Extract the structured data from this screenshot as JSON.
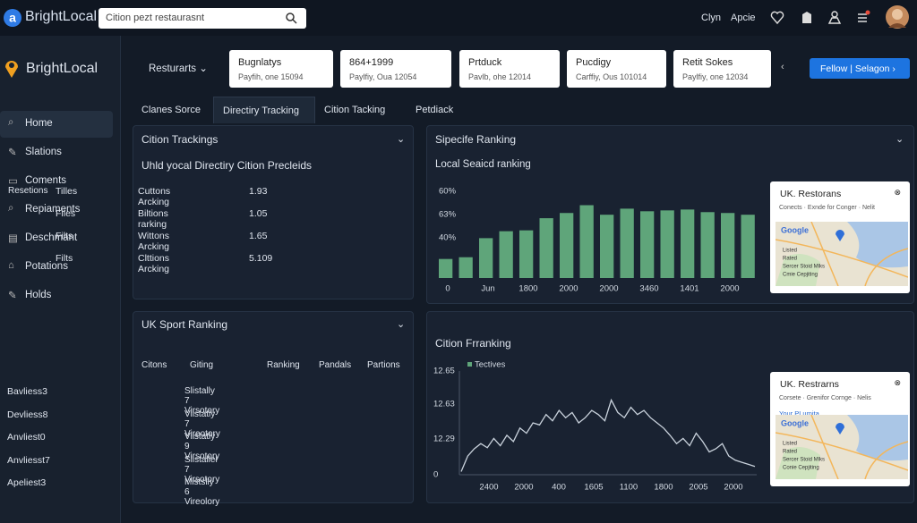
{
  "header": {
    "logo": "BrightLocal",
    "search": "Cition pezt restaurasnt",
    "links": [
      "Clyn",
      "Apcie"
    ]
  },
  "sidebar": {
    "brand": "BrightLocal",
    "nav": [
      "Home",
      "Slations",
      "Coments",
      "Repiaments",
      "Deschmant",
      "Potations",
      "Holds"
    ]
  },
  "toolbar": {
    "dropdown": "Resturarts",
    "cards": [
      {
        "title": "Bugnlatys",
        "sub": "Payfih, one 15094"
      },
      {
        "title": "864+1999",
        "sub": "Paylfiy, Oua 12054"
      },
      {
        "title": "Prtduck",
        "sub": "Pavlb, ohe 12014"
      },
      {
        "title": "Pucdigy",
        "sub": "Carffiy, Ous 101014"
      },
      {
        "title": "Retit Sokes",
        "sub": "Paylfiy, one 12034"
      }
    ],
    "button": "Fellow | Selagon"
  },
  "tabs": [
    "Clanes Sorce",
    "Directiry Tracking",
    "Cition Tacking",
    "Petdiack"
  ],
  "citation_tracking": {
    "title": "Cition Trackings",
    "subtitle": "Uhld yocal Directiry Cition Precleids",
    "rows": [
      {
        "label": "Resetions",
        "cells": [
          "Tilles",
          "Cuttons Arcking",
          1.93
        ]
      },
      {
        "cells": [
          "Files",
          "Biltions rarking",
          1.05
        ]
      },
      {
        "cells": [
          "Filts",
          "Wittons Arcking",
          1.65
        ]
      },
      {
        "cells": [
          "Filts",
          "Clttions Arcking",
          5.109
        ]
      }
    ]
  },
  "specific_ranking": {
    "title": "Sipecife Ranking",
    "subtitle": "Local Seaicd ranking",
    "chart": {
      "type": "bar",
      "color": "#5fa57a",
      "ylim": [
        0,
        100
      ],
      "y_labels": [
        "60%",
        "63%",
        "40%"
      ],
      "x_labels": [
        "0",
        "Jun",
        "1800",
        "2000",
        "2000",
        "3460",
        "1401",
        "2000"
      ],
      "values": [
        22,
        24,
        46,
        54,
        55,
        69,
        75,
        84,
        73,
        80,
        77,
        78,
        79,
        76,
        75,
        73
      ]
    }
  },
  "map_cards": [
    {
      "title": "UK. Restorans",
      "line": "Conects · Exnde for Conger · Nelit",
      "brand": "Google",
      "legend": [
        "Listed",
        "Rated",
        "Sercer Stoid Mlks",
        "Cmie Cepjiting"
      ]
    },
    {
      "title": "UK. Restrarns",
      "line": "Corsete · Grenifor Cornge · Nelis",
      "sub": "Your PLumita",
      "brand": "Google",
      "legend": [
        "Listed",
        "Rated",
        "Sercer Stoid Mlks",
        "Conie Cepjiting"
      ]
    }
  ],
  "uk_sport_ranking": {
    "title": "UK Sport Ranking",
    "headers": [
      "Citons",
      "Giting",
      "Ranking",
      "Pandals",
      "Partions"
    ],
    "rows": [
      [
        "Bavliess3",
        "Slistally 7 Virsotory"
      ],
      [
        "Devliess8",
        "Vilstatly 7 Vireotory"
      ],
      [
        "Anvliest0",
        "Vilstatly 9 Virsotory"
      ],
      [
        "Anvliesst7",
        "Slistallel 7 Virsotory"
      ],
      [
        "Apeliest3",
        "Mistslly 6 Vireolory"
      ]
    ]
  },
  "citation_ranking": {
    "title": "Cition Frranking",
    "chart": {
      "type": "line",
      "color": "#c9d2dc",
      "ylim": [
        0,
        100
      ],
      "legend": "Tectives",
      "y_labels": [
        "12.65",
        "12.63",
        "12.29",
        "0"
      ],
      "x_labels": [
        "2400",
        "2000",
        "400",
        "1605",
        "1100",
        "1800",
        "2005",
        "2000"
      ],
      "values": [
        3,
        18,
        25,
        30,
        26,
        35,
        28,
        38,
        32,
        45,
        40,
        50,
        48,
        58,
        52,
        62,
        55,
        60,
        50,
        55,
        62,
        58,
        52,
        72,
        60,
        55,
        65,
        58,
        62,
        55,
        50,
        45,
        38,
        30,
        35,
        28,
        40,
        32,
        22,
        25,
        30,
        18,
        14,
        12,
        10,
        8
      ]
    }
  }
}
